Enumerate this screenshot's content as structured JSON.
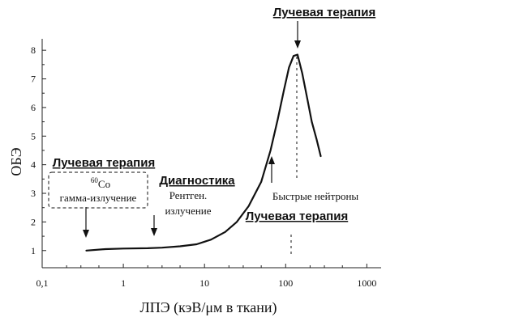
{
  "chart_data": {
    "type": "line",
    "title": "",
    "xlabel": "ЛПЭ (кэВ/μм в ткани)",
    "ylabel": "ОБЭ",
    "xscale": "log",
    "xlim": [
      0.1,
      1500
    ],
    "ylim": [
      0.4,
      8.4
    ],
    "xticks": [
      "0,1",
      "1",
      "10",
      "100",
      "1000"
    ],
    "yticks": [
      "1",
      "2",
      "3",
      "4",
      "5",
      "6",
      "7",
      "8"
    ],
    "grid": false,
    "series": [
      {
        "x": [
          0.35,
          0.6,
          1,
          2,
          3,
          5,
          8,
          12,
          18,
          25,
          35,
          50,
          65,
          80,
          95,
          110,
          125,
          140,
          160,
          185,
          210,
          240,
          270
        ],
        "y": [
          1.0,
          1.05,
          1.07,
          1.08,
          1.1,
          1.15,
          1.22,
          1.38,
          1.65,
          2.0,
          2.55,
          3.4,
          4.5,
          5.6,
          6.6,
          7.4,
          7.8,
          7.85,
          7.2,
          6.3,
          5.5,
          4.9,
          4.3
        ]
      }
    ],
    "annotations": {
      "peak_heading": "Лучевая терапия",
      "left_heading": "Лучевая терапия",
      "cobalt_mass": "60",
      "cobalt_symbol": "Co",
      "cobalt_text": "гамма-излучение",
      "diag_heading": "Диагностика",
      "diag_line1": "Рентген.",
      "diag_line2": "излучение",
      "neutrons_text": "Быстрые нейтроны",
      "bottom_heading": "Лучевая терапия"
    }
  }
}
